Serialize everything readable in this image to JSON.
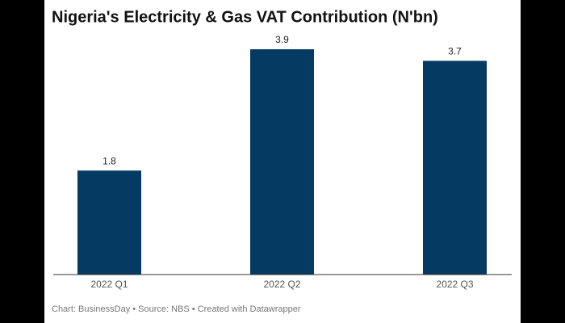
{
  "chart_data": {
    "type": "bar",
    "title": "Nigeria's Electricity & Gas VAT Contribution (N'bn)",
    "categories": [
      "2022 Q1",
      "2022 Q2",
      "2022 Q3"
    ],
    "values": [
      1.8,
      3.9,
      3.7
    ],
    "color": "#053a62",
    "source": "Chart: BusinessDay • Source: NBS • Created with Datawrapper"
  }
}
